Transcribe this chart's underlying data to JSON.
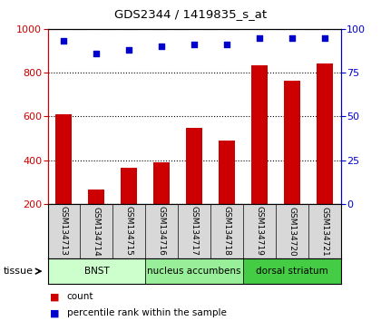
{
  "title": "GDS2344 / 1419835_s_at",
  "samples": [
    "GSM134713",
    "GSM134714",
    "GSM134715",
    "GSM134716",
    "GSM134717",
    "GSM134718",
    "GSM134719",
    "GSM134720",
    "GSM134721"
  ],
  "counts": [
    608,
    265,
    365,
    388,
    548,
    490,
    835,
    762,
    842
  ],
  "percentiles": [
    93,
    86,
    88,
    90,
    91,
    91,
    95,
    95,
    95
  ],
  "ylim_left": [
    200,
    1000
  ],
  "ylim_right": [
    0,
    100
  ],
  "yticks_left": [
    200,
    400,
    600,
    800,
    1000
  ],
  "yticks_right": [
    0,
    25,
    50,
    75,
    100
  ],
  "bar_color": "#cc0000",
  "dot_color": "#0000cc",
  "bar_width": 0.5,
  "groups": [
    {
      "label": "BNST",
      "start": 0,
      "end": 3,
      "color": "#ccffcc"
    },
    {
      "label": "nucleus accumbens",
      "start": 3,
      "end": 6,
      "color": "#99ee99"
    },
    {
      "label": "dorsal striatum",
      "start": 6,
      "end": 9,
      "color": "#44cc44"
    }
  ],
  "tissue_label": "tissue",
  "legend_count": "count",
  "legend_pct": "percentile rank within the sample",
  "bg_color": "#d8d8d8",
  "plot_bg": "#ffffff"
}
